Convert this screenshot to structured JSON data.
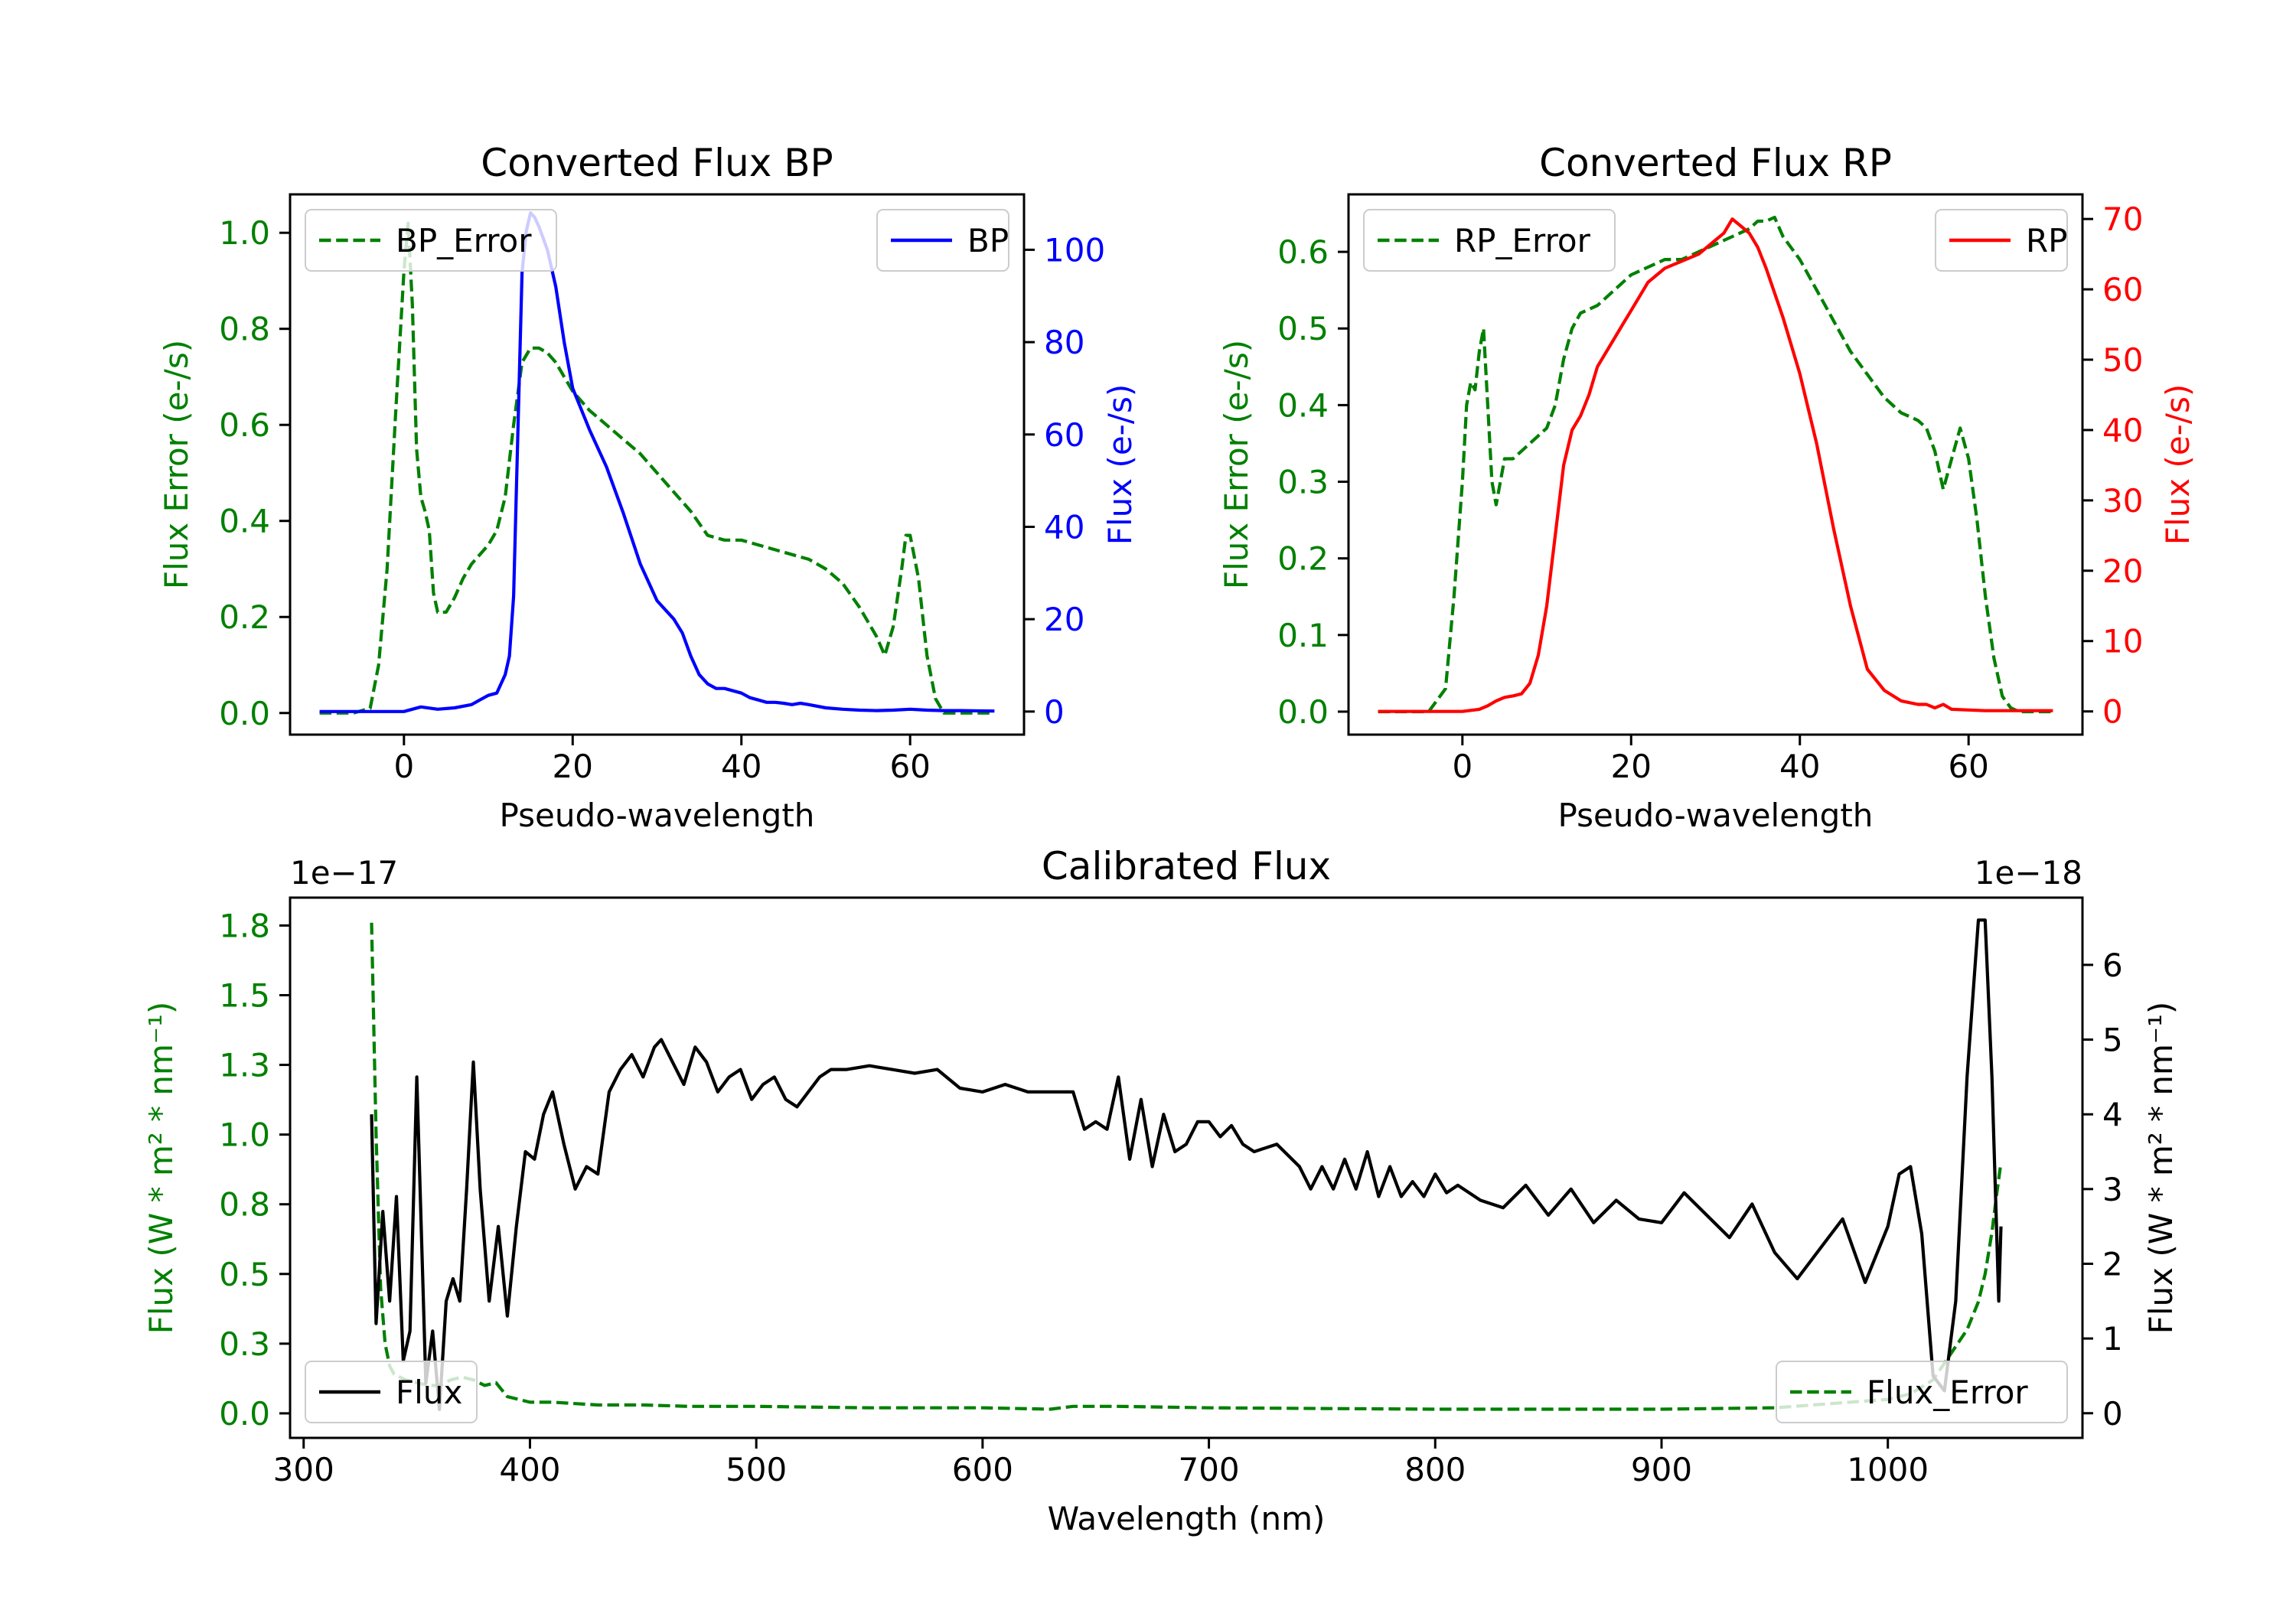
{
  "chart_data": [
    {
      "id": "bp",
      "type": "line",
      "title": "Converted Flux BP",
      "xlabel": "Pseudo-wavelength",
      "ylabel_left": "Flux Error (e-/s)",
      "ylabel_right": "Flux (e-/s)",
      "xlim": [
        -13.5,
        73.5
      ],
      "ylim_left": [
        -0.045,
        1.08
      ],
      "ylim_right": [
        -5,
        112
      ],
      "xticks": [
        0,
        20,
        40,
        60
      ],
      "yticks_left": [
        0.0,
        0.2,
        0.4,
        0.6,
        0.8,
        1.0
      ],
      "yticks_right": [
        0,
        20,
        40,
        60,
        80,
        100
      ],
      "series": [
        {
          "name": "BP_Error",
          "axis": "left",
          "color": "#008000",
          "dash": true,
          "x": [
            -10,
            -6,
            -4,
            -3,
            -2,
            -1,
            0,
            0.5,
            1,
            1.5,
            2,
            2.5,
            3,
            3.5,
            4,
            5,
            6,
            7,
            8,
            9,
            10,
            11,
            12,
            13,
            14,
            15,
            16,
            17,
            18,
            19,
            20,
            22,
            24,
            26,
            28,
            30,
            32,
            34,
            36,
            38,
            40,
            42,
            44,
            46,
            48,
            50,
            52,
            54,
            56,
            57,
            58,
            59,
            59.5,
            60,
            61,
            62,
            63,
            64,
            66,
            70
          ],
          "y": [
            0.0,
            0.0,
            0.01,
            0.1,
            0.3,
            0.62,
            0.92,
            1.02,
            0.85,
            0.55,
            0.45,
            0.42,
            0.38,
            0.25,
            0.21,
            0.21,
            0.24,
            0.28,
            0.31,
            0.33,
            0.35,
            0.38,
            0.45,
            0.6,
            0.73,
            0.76,
            0.76,
            0.75,
            0.73,
            0.7,
            0.67,
            0.63,
            0.6,
            0.57,
            0.54,
            0.5,
            0.46,
            0.42,
            0.37,
            0.36,
            0.36,
            0.35,
            0.34,
            0.33,
            0.32,
            0.3,
            0.27,
            0.22,
            0.16,
            0.12,
            0.18,
            0.3,
            0.37,
            0.37,
            0.28,
            0.12,
            0.03,
            0.0,
            0.0,
            0.0
          ]
        },
        {
          "name": "BP",
          "axis": "right",
          "color": "#0000ff",
          "dash": false,
          "x": [
            -10,
            0,
            1,
            2,
            4,
            6,
            8,
            9,
            10,
            11,
            12,
            12.5,
            13,
            13.5,
            14,
            14.5,
            15,
            15.5,
            16,
            17,
            18,
            19,
            20,
            22,
            24,
            26,
            28,
            30,
            31,
            32,
            33,
            34,
            35,
            36,
            37,
            38,
            40,
            41,
            42,
            43,
            44,
            45,
            46,
            47,
            48,
            50,
            52,
            54,
            56,
            58,
            60,
            62,
            64,
            66,
            70
          ],
          "y": [
            0,
            0,
            0.5,
            1,
            0.5,
            0.8,
            1.5,
            2.5,
            3.5,
            4,
            8,
            12,
            25,
            60,
            95,
            104,
            108,
            107,
            105,
            100,
            92,
            80,
            70,
            61,
            53,
            43,
            32,
            24,
            22,
            20,
            17,
            12,
            8,
            6,
            5,
            5,
            4,
            3,
            2.5,
            2,
            2,
            1.8,
            1.5,
            1.8,
            1.5,
            0.8,
            0.5,
            0.3,
            0.2,
            0.3,
            0.5,
            0.3,
            0.2,
            0.2,
            0.1
          ]
        }
      ],
      "legend": [
        {
          "label": "BP_Error",
          "position": "upper-left"
        },
        {
          "label": "BP",
          "position": "upper-right"
        }
      ]
    },
    {
      "id": "rp",
      "type": "line",
      "title": "Converted Flux RP",
      "xlabel": "Pseudo-wavelength",
      "ylabel_left": "Flux Error (e-/s)",
      "ylabel_right": "Flux (e-/s)",
      "xlim": [
        -13.5,
        73.5
      ],
      "ylim_left": [
        -0.03,
        0.675
      ],
      "ylim_right": [
        -3.3,
        73.5
      ],
      "xticks": [
        0,
        20,
        40,
        60
      ],
      "yticks_left": [
        0.0,
        0.1,
        0.2,
        0.3,
        0.4,
        0.5,
        0.6
      ],
      "yticks_right": [
        0,
        10,
        20,
        30,
        40,
        50,
        60,
        70
      ],
      "series": [
        {
          "name": "RP_Error",
          "axis": "left",
          "color": "#008000",
          "dash": true,
          "x": [
            -10,
            -4,
            -2,
            -1,
            0,
            0.5,
            1,
            1.5,
            2,
            2.5,
            3,
            3.5,
            4,
            5,
            6,
            7,
            8,
            9,
            10,
            11,
            12,
            13,
            14,
            16,
            18,
            20,
            22,
            24,
            26,
            28,
            30,
            32,
            34,
            35,
            36,
            37,
            38,
            40,
            42,
            44,
            46,
            48,
            50,
            52,
            54,
            55,
            56,
            57,
            58,
            59,
            60,
            61,
            62,
            63,
            64,
            65,
            66,
            70
          ],
          "y": [
            0.0,
            0.0,
            0.03,
            0.15,
            0.3,
            0.4,
            0.43,
            0.42,
            0.47,
            0.5,
            0.4,
            0.3,
            0.27,
            0.33,
            0.33,
            0.34,
            0.35,
            0.36,
            0.37,
            0.4,
            0.46,
            0.5,
            0.52,
            0.53,
            0.55,
            0.57,
            0.58,
            0.59,
            0.59,
            0.6,
            0.61,
            0.62,
            0.63,
            0.64,
            0.64,
            0.645,
            0.62,
            0.59,
            0.55,
            0.51,
            0.47,
            0.44,
            0.41,
            0.39,
            0.38,
            0.37,
            0.34,
            0.29,
            0.33,
            0.37,
            0.33,
            0.25,
            0.15,
            0.07,
            0.02,
            0.005,
            0.0,
            0.0
          ]
        },
        {
          "name": "RP",
          "axis": "right",
          "color": "#ff0000",
          "dash": false,
          "x": [
            -10,
            0,
            2,
            3,
            4,
            5,
            6,
            7,
            8,
            9,
            10,
            11,
            12,
            13,
            14,
            15,
            16,
            17,
            18,
            19,
            20,
            21,
            22,
            24,
            26,
            28,
            30,
            31,
            32,
            33,
            34,
            35,
            36,
            38,
            40,
            42,
            44,
            46,
            48,
            50,
            52,
            54,
            55,
            56,
            57,
            58,
            60,
            62,
            66,
            70
          ],
          "y": [
            0,
            0,
            0.3,
            0.8,
            1.5,
            2,
            2.2,
            2.5,
            4,
            8,
            15,
            25,
            35,
            40,
            42,
            45,
            49,
            51,
            53,
            55,
            57,
            59,
            61,
            63,
            64,
            65,
            67,
            68,
            70,
            69,
            68,
            66,
            63,
            56,
            48,
            38,
            26,
            15,
            6,
            3,
            1.5,
            1,
            1,
            0.5,
            1,
            0.3,
            0.2,
            0.1,
            0.1,
            0.1
          ]
        }
      ],
      "legend": [
        {
          "label": "RP_Error",
          "position": "upper-left"
        },
        {
          "label": "RP",
          "position": "upper-right"
        }
      ]
    },
    {
      "id": "cal",
      "type": "line",
      "title": "Calibrated Flux",
      "xlabel": "Wavelength (nm)",
      "ylabel_left": "Flux (W * m² * nm⁻¹)",
      "ylabel_right": "Flux (W * m² * nm⁻¹)",
      "offset_left": "1e−17",
      "offset_right": "1e−18",
      "xlim": [
        294,
        1086
      ],
      "ylim_left": [
        -0.088,
        1.85
      ],
      "ylim_right": [
        -0.33,
        6.9
      ],
      "xticks": [
        300,
        400,
        500,
        600,
        700,
        800,
        900,
        1000
      ],
      "yticks_left": [
        0.0,
        0.25,
        0.5,
        0.75,
        1.0,
        1.25,
        1.5,
        1.75
      ],
      "yticks_left_labels": [
        "0.00",
        "0.25",
        "0.50",
        "0.75",
        "1.00",
        "1.25",
        "1.50",
        "1.75"
      ],
      "yticks_right": [
        0,
        1,
        2,
        3,
        4,
        5,
        6
      ],
      "series": [
        {
          "name": "Flux_Error",
          "axis": "left",
          "color": "#008000",
          "dash": true,
          "x": [
            330,
            332,
            334,
            336,
            338,
            340,
            345,
            350,
            355,
            360,
            365,
            370,
            375,
            380,
            385,
            390,
            395,
            400,
            410,
            420,
            430,
            440,
            450,
            470,
            500,
            550,
            600,
            630,
            640,
            660,
            700,
            800,
            900,
            950,
            1000,
            1010,
            1020,
            1025,
            1030,
            1035,
            1040,
            1043,
            1046,
            1048,
            1050
          ],
          "y": [
            1.76,
            1.0,
            0.45,
            0.25,
            0.17,
            0.14,
            0.12,
            0.11,
            0.1,
            0.1,
            0.12,
            0.13,
            0.12,
            0.1,
            0.11,
            0.06,
            0.05,
            0.04,
            0.04,
            0.035,
            0.03,
            0.03,
            0.03,
            0.025,
            0.025,
            0.02,
            0.02,
            0.015,
            0.025,
            0.025,
            0.02,
            0.015,
            0.015,
            0.02,
            0.05,
            0.07,
            0.12,
            0.18,
            0.24,
            0.3,
            0.4,
            0.5,
            0.65,
            0.78,
            0.9
          ]
        },
        {
          "name": "Flux",
          "axis": "right",
          "color": "#000000",
          "dash": false,
          "x": [
            330,
            332,
            335,
            338,
            341,
            344,
            347,
            350,
            354,
            357,
            360,
            363,
            366,
            369,
            372,
            375,
            378,
            382,
            386,
            390,
            394,
            398,
            402,
            406,
            410,
            415,
            420,
            425,
            430,
            435,
            440,
            445,
            450,
            455,
            458,
            463,
            468,
            473,
            478,
            483,
            488,
            493,
            498,
            503,
            508,
            513,
            518,
            523,
            528,
            533,
            540,
            550,
            560,
            570,
            580,
            590,
            600,
            610,
            620,
            630,
            635,
            640,
            645,
            650,
            655,
            660,
            665,
            670,
            675,
            680,
            685,
            690,
            695,
            700,
            705,
            710,
            715,
            720,
            730,
            740,
            745,
            750,
            755,
            760,
            765,
            770,
            775,
            780,
            785,
            790,
            795,
            800,
            805,
            810,
            820,
            830,
            840,
            850,
            860,
            870,
            880,
            890,
            900,
            910,
            920,
            930,
            940,
            950,
            960,
            970,
            980,
            990,
            1000,
            1005,
            1010,
            1015,
            1020,
            1025,
            1030,
            1035,
            1040,
            1043,
            1046,
            1049,
            1050
          ],
          "y": [
            4.0,
            1.2,
            2.7,
            1.5,
            2.9,
            0.7,
            1.1,
            4.5,
            0.4,
            1.1,
            0.05,
            1.5,
            1.8,
            1.5,
            3.0,
            4.7,
            3.0,
            1.5,
            2.5,
            1.3,
            2.5,
            3.5,
            3.4,
            4.0,
            4.3,
            3.6,
            3.0,
            3.3,
            3.2,
            4.3,
            4.6,
            4.8,
            4.5,
            4.9,
            5.0,
            4.7,
            4.4,
            4.9,
            4.7,
            4.3,
            4.5,
            4.6,
            4.2,
            4.4,
            4.5,
            4.2,
            4.1,
            4.3,
            4.5,
            4.6,
            4.6,
            4.65,
            4.6,
            4.55,
            4.6,
            4.35,
            4.3,
            4.4,
            4.3,
            4.3,
            4.3,
            4.3,
            3.8,
            3.9,
            3.8,
            4.5,
            3.4,
            4.2,
            3.3,
            4.0,
            3.5,
            3.6,
            3.9,
            3.9,
            3.7,
            3.85,
            3.6,
            3.5,
            3.6,
            3.3,
            3.0,
            3.3,
            3.0,
            3.4,
            3.0,
            3.5,
            2.9,
            3.3,
            2.9,
            3.1,
            2.9,
            3.2,
            2.95,
            3.05,
            2.85,
            2.75,
            3.05,
            2.65,
            3.0,
            2.55,
            2.85,
            2.6,
            2.55,
            2.95,
            2.65,
            2.35,
            2.8,
            2.15,
            1.8,
            2.2,
            2.6,
            1.75,
            2.5,
            3.2,
            3.3,
            2.4,
            0.5,
            0.3,
            1.5,
            4.5,
            6.6,
            6.6,
            4.5,
            1.5,
            2.5
          ]
        }
      ],
      "legend": [
        {
          "label": "Flux",
          "position": "lower-left"
        },
        {
          "label": "Flux_Error",
          "position": "lower-right"
        }
      ]
    }
  ]
}
